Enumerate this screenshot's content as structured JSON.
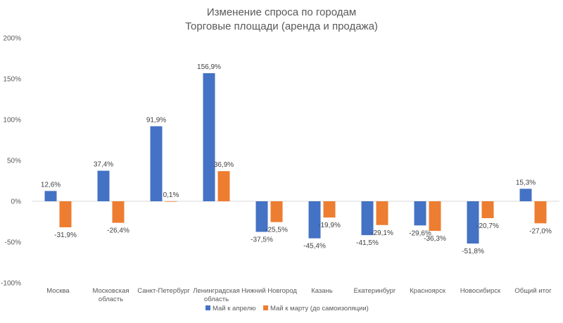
{
  "chart_data": {
    "type": "bar",
    "title": "Изменение спроса по городам",
    "subtitle": "Торговые площади (аренда и продажа)",
    "categories": [
      [
        "Москва"
      ],
      [
        "Московская",
        "область"
      ],
      [
        "Санкт-Петербург"
      ],
      [
        "Ленинградская",
        "область"
      ],
      [
        "Нижний Новгород"
      ],
      [
        "Казань"
      ],
      [
        "Екатеринбург"
      ],
      [
        "Красноярск"
      ],
      [
        "Новосибирск"
      ],
      [
        "Общий итог"
      ]
    ],
    "series": [
      {
        "name": "Май к апрелю",
        "color": "#4472C4",
        "values": [
          12.6,
          37.4,
          91.9,
          156.9,
          -37.5,
          -45.4,
          -41.5,
          -29.6,
          -51.8,
          15.3
        ],
        "labels": [
          "12,6%",
          "37,4%",
          "91,9%",
          "156,9%",
          "-37,5%",
          "-45,4%",
          "-41,5%",
          "-29,6%",
          "-51,8%",
          "15,3%"
        ]
      },
      {
        "name": "Май к марту (до самоизоляции)",
        "color": "#ED7D31",
        "values": [
          -31.9,
          -26.4,
          0.1,
          36.9,
          -25.5,
          -19.9,
          -29.1,
          -36.3,
          -20.7,
          -27.0
        ],
        "labels": [
          "-31,9%",
          "-26,4%",
          "0,1%",
          "36,9%",
          "-25,5%",
          "-19,9%",
          "-29,1%",
          "-36,3%",
          "-20,7%",
          "-27,0%"
        ]
      }
    ],
    "ylim": [
      -100,
      200
    ],
    "yticks": [
      -100,
      -50,
      0,
      50,
      100,
      150,
      200
    ],
    "ytick_labels": [
      "-100%",
      "-50%",
      "0%",
      "50%",
      "100%",
      "150%",
      "200%"
    ],
    "grid": false,
    "legend": "bottom"
  }
}
